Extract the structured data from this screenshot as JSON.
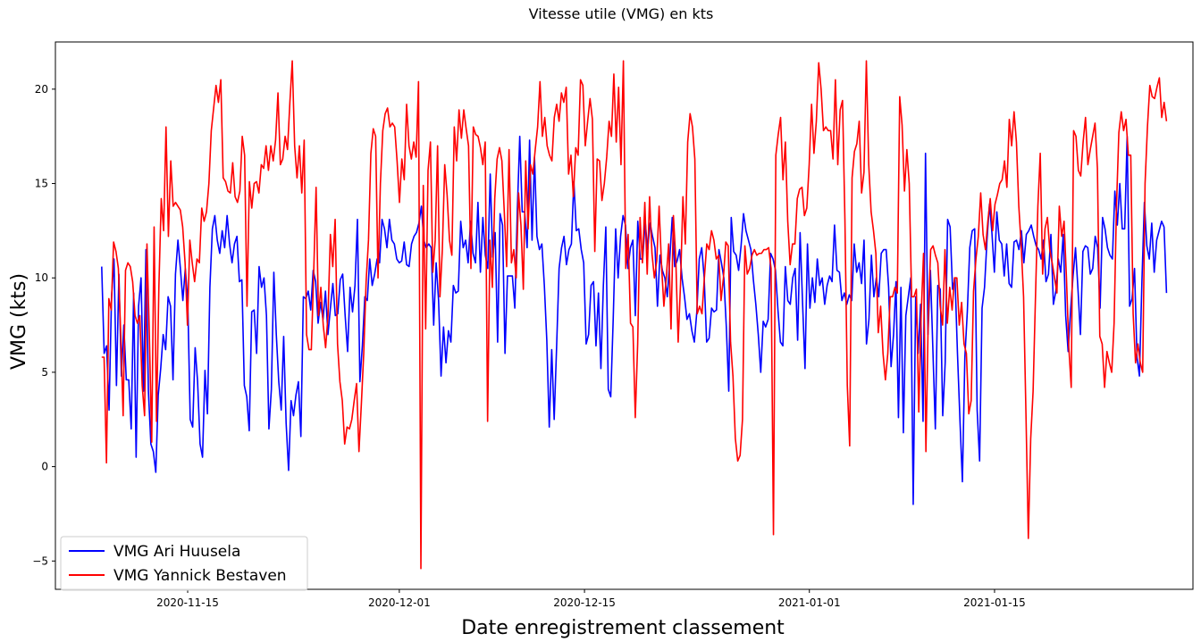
{
  "chart_data": {
    "type": "line",
    "title": "Vitesse utile (VMG) en kts",
    "xlabel": "Date enregistrement classement",
    "ylabel": "VMG (kts)",
    "x_start": "2020-11-08T12:00",
    "x_end": "2021-01-28T00:00",
    "xlim": [
      "2020-11-05T00:00",
      "2021-01-30T00:00"
    ],
    "ylim": [
      -6.5,
      22.5
    ],
    "xticks": [
      "2020-11-15",
      "2020-12-01",
      "2020-12-15",
      "2021-01-01",
      "2021-01-15"
    ],
    "yticks": [
      -5,
      0,
      5,
      10,
      15,
      20
    ],
    "grid": false,
    "legend_position": "lower-left",
    "series": [
      {
        "name": "VMG Ari Huusela",
        "color": "#0000ff",
        "values": [
          10.6,
          6.0,
          6.4,
          3.0,
          9.0,
          11.0,
          4.3,
          10.2,
          4.8,
          7.5,
          4.6,
          4.6,
          2.0,
          9.2,
          0.5,
          8.5,
          10.0,
          4.0,
          11.5,
          4.0,
          1.2,
          0.8,
          -0.3,
          3.8,
          5.2,
          7.0,
          6.2,
          9.0,
          8.5,
          4.6,
          10.2,
          12.0,
          10.5,
          8.8,
          10.5,
          8.8,
          2.5,
          2.1,
          6.3,
          4.5,
          1.2,
          0.5,
          5.1,
          2.8,
          9.5,
          12.6,
          13.3,
          12.0,
          11.3,
          12.5,
          11.6,
          13.3,
          11.8,
          10.8,
          11.8,
          12.2,
          9.8,
          9.9,
          4.3,
          3.7,
          1.9,
          8.2,
          8.3,
          6.0,
          10.6,
          9.5,
          10.0,
          8.0,
          2.0,
          4.1,
          10.3,
          7.0,
          4.5,
          3.0,
          6.9,
          2.3,
          -0.2,
          3.5,
          2.7,
          3.8,
          4.5,
          1.6,
          9.0,
          8.9,
          9.3,
          8.3,
          10.4,
          9.8,
          7.6,
          8.7,
          7.8,
          9.3,
          7.0,
          8.4,
          9.7,
          8.0,
          8.1,
          9.9,
          10.2,
          8.0,
          6.1,
          9.5,
          8.2,
          9.6,
          13.1,
          4.5,
          6.4,
          9.0,
          8.8,
          11.0,
          9.6,
          10.2,
          11.0,
          10.8,
          13.1,
          12.6,
          11.6,
          13.1,
          12.0,
          11.8,
          11.0,
          10.8,
          10.9,
          11.9,
          10.7,
          10.6,
          11.8,
          12.2,
          12.4,
          12.9,
          13.8,
          12.0,
          11.6,
          11.8,
          11.6,
          7.5,
          10.8,
          8.8,
          4.8,
          7.4,
          5.5,
          7.2,
          6.6,
          9.6,
          9.2,
          9.3,
          13.0,
          11.6,
          12.0,
          10.8,
          13.0,
          11.3,
          10.8,
          14.0,
          10.3,
          13.2,
          11.2,
          10.5,
          15.5,
          11.1,
          12.4,
          6.6,
          13.4,
          12.8,
          6.0,
          10.1,
          10.1,
          10.1,
          8.4,
          13.5,
          17.5,
          13.5,
          13.5,
          11.6,
          17.3,
          12.0,
          16.4,
          12.2,
          11.5,
          11.8,
          9.6,
          6.7,
          2.1,
          6.2,
          2.5,
          6.4,
          10.5,
          11.6,
          12.2,
          10.7,
          11.5,
          11.8,
          15.1,
          12.5,
          12.6,
          11.5,
          10.8,
          6.5,
          7.0,
          9.6,
          9.8,
          6.4,
          9.2,
          5.2,
          9.6,
          12.7,
          4.1,
          3.7,
          7.8,
          12.6,
          10.0,
          12.2,
          13.3,
          12.8,
          10.5,
          11.6,
          12.0,
          8.0,
          13.0,
          11.0,
          11.0,
          13.0,
          11.5,
          12.9,
          12.2,
          11.6,
          8.5,
          11.2,
          10.4,
          10.0,
          9.0,
          11.0,
          13.2,
          10.6,
          10.9,
          11.5,
          10.0,
          9.0,
          7.8,
          8.1,
          7.2,
          6.6,
          8.2,
          11.0,
          11.6,
          10.0,
          6.6,
          6.8,
          8.4,
          8.2,
          8.3,
          11.5,
          10.8,
          10.0,
          7.4,
          4.0,
          13.2,
          11.4,
          11.2,
          10.4,
          11.7,
          13.4,
          12.5,
          12.0,
          11.5,
          9.9,
          8.6,
          7.0,
          5.0,
          7.7,
          7.4,
          7.8,
          11.3,
          11.0,
          10.4,
          8.3,
          6.6,
          6.4,
          10.6,
          8.8,
          8.6,
          10.0,
          10.5,
          6.7,
          12.4,
          8.7,
          5.2,
          11.8,
          8.4,
          10.0,
          8.7,
          11.0,
          9.6,
          10.0,
          8.6,
          9.6,
          10.1,
          9.8,
          12.8,
          10.4,
          10.3,
          8.8,
          9.2,
          8.6,
          9.1,
          8.8,
          11.8,
          10.3,
          10.8,
          9.7,
          12.0,
          6.5,
          7.8,
          11.2,
          9.0,
          10.0,
          9.0,
          11.3,
          11.5,
          11.5,
          9.5,
          5.3,
          7.0,
          9.8,
          2.6,
          9.5,
          1.8,
          8.0,
          9.0,
          10.0,
          -2.0,
          9.0,
          6.0,
          8.6,
          2.4,
          16.6,
          7.0,
          10.4,
          6.2,
          2.0,
          9.6,
          9.4,
          2.7,
          5.5,
          13.1,
          12.7,
          9.4,
          10.0,
          6.0,
          2.5,
          -0.8,
          5.8,
          8.2,
          11.6,
          12.5,
          12.6,
          3.0,
          0.3,
          8.4,
          9.5,
          12.0,
          13.9,
          12.4,
          10.3,
          13.5,
          12.0,
          11.8,
          10.1,
          11.8,
          9.7,
          9.5,
          11.9,
          12.0,
          11.5,
          12.5,
          10.8,
          12.3,
          12.5,
          12.8,
          12.2,
          11.7,
          11.5,
          11.0,
          12.0,
          9.8,
          10.2,
          12.3,
          8.6,
          9.3,
          11.0,
          10.3,
          12.3,
          8.0,
          6.1,
          8.3,
          10.1,
          11.6,
          9.4,
          7.0,
          11.4,
          11.7,
          11.6,
          10.2,
          10.5,
          12.2,
          11.6,
          8.4,
          13.2,
          12.6,
          11.6,
          11.2,
          11.0,
          14.6,
          12.8,
          15.0,
          12.6,
          12.6,
          17.5,
          8.5,
          8.9,
          10.5,
          5.8,
          4.8,
          9.8,
          14.0,
          11.7,
          11.0,
          12.9,
          10.3,
          12.0,
          12.5,
          13.0,
          12.7,
          9.2
        ]
      },
      {
        "name": "VMG Yannick Bestaven",
        "color": "#ff0000",
        "values": [
          5.8,
          5.8,
          0.2,
          8.9,
          8.3,
          11.9,
          11.4,
          10.5,
          7.0,
          2.7,
          10.4,
          10.8,
          10.6,
          9.8,
          8.0,
          7.6,
          8.0,
          4.3,
          2.7,
          11.8,
          7.0,
          1.3,
          12.7,
          2.4,
          9.5,
          14.2,
          12.5,
          18.0,
          12.2,
          16.2,
          13.8,
          14.0,
          13.8,
          13.6,
          12.7,
          10.8,
          7.5,
          12.0,
          10.8,
          9.8,
          11.0,
          10.8,
          13.7,
          13.0,
          13.5,
          15.0,
          17.8,
          19.0,
          20.2,
          19.3,
          20.5,
          15.3,
          15.1,
          14.6,
          14.5,
          16.1,
          14.3,
          14.0,
          14.6,
          17.5,
          16.5,
          8.5,
          15.1,
          13.7,
          15.0,
          15.1,
          14.5,
          16.0,
          15.8,
          17.0,
          15.7,
          17.0,
          16.2,
          17.3,
          19.8,
          16.0,
          16.3,
          17.5,
          16.8,
          19.3,
          21.5,
          17.0,
          15.3,
          17.0,
          14.5,
          17.3,
          7.0,
          6.2,
          6.2,
          10.3,
          14.8,
          8.0,
          9.5,
          7.5,
          6.3,
          8.0,
          12.3,
          10.6,
          13.1,
          6.5,
          4.5,
          3.5,
          1.2,
          2.1,
          2.0,
          2.5,
          3.5,
          4.4,
          0.8,
          3.3,
          6.0,
          9.8,
          12.0,
          16.6,
          17.9,
          17.5,
          10.0,
          15.0,
          17.8,
          18.7,
          19.0,
          18.0,
          18.2,
          18.0,
          16.2,
          14.0,
          16.3,
          15.2,
          19.2,
          17.0,
          16.3,
          17.2,
          16.4,
          20.4,
          -5.4,
          14.9,
          7.3,
          15.7,
          17.2,
          10.3,
          12.0,
          17.0,
          9.0,
          11.5,
          16.0,
          14.4,
          12.0,
          11.2,
          18.0,
          16.2,
          18.9,
          17.4,
          18.9,
          17.9,
          17.0,
          10.5,
          18.0,
          17.6,
          17.5,
          16.9,
          16.0,
          17.2,
          2.4,
          12.0,
          9.5,
          14.2,
          16.3,
          16.9,
          16.2,
          13.5,
          10.6,
          16.8,
          10.8,
          11.5,
          10.0,
          14.5,
          12.8,
          9.4,
          16.2,
          12.6,
          16.0,
          15.5,
          16.8,
          18.0,
          20.4,
          17.5,
          18.5,
          17.0,
          16.5,
          16.2,
          18.5,
          19.2,
          18.3,
          19.8,
          19.3,
          20.1,
          15.5,
          16.5,
          14.3,
          16.9,
          16.5,
          20.5,
          20.2,
          17.0,
          18.3,
          19.5,
          18.4,
          11.4,
          16.3,
          16.2,
          14.1,
          15.0,
          16.4,
          18.3,
          17.5,
          20.8,
          17.2,
          20.1,
          16.0,
          21.5,
          10.5,
          12.3,
          7.6,
          7.4,
          2.6,
          6.5,
          13.2,
          10.8,
          14.0,
          10.2,
          14.3,
          11.3,
          10.0,
          10.9,
          13.8,
          10.7,
          8.5,
          10.0,
          11.8,
          7.3,
          13.3,
          11.0,
          6.6,
          9.7,
          14.3,
          11.8,
          17.2,
          18.7,
          18.0,
          16.3,
          8.1,
          8.5,
          8.1,
          10.0,
          11.8,
          11.5,
          12.5,
          12.0,
          11.0,
          11.2,
          8.8,
          10.0,
          11.9,
          11.7,
          6.6,
          4.8,
          1.5,
          0.3,
          0.6,
          2.5,
          11.7,
          10.2,
          10.5,
          11.2,
          11.5,
          11.2,
          11.3,
          11.3,
          11.5,
          11.5,
          11.6,
          10.5,
          -3.6,
          16.5,
          17.6,
          18.5,
          15.2,
          17.2,
          13.0,
          10.7,
          11.8,
          11.8,
          14.2,
          14.7,
          14.8,
          13.3,
          13.7,
          16.0,
          19.2,
          16.6,
          18.3,
          21.4,
          20.0,
          17.8,
          18.0,
          17.8,
          17.8,
          16.3,
          20.5,
          16.0,
          18.9,
          19.4,
          13.1,
          4.3,
          1.1,
          15.3,
          16.7,
          17.1,
          18.3,
          14.5,
          15.6,
          21.5,
          16.0,
          13.5,
          12.5,
          11.3,
          7.1,
          8.5,
          6.0,
          4.6,
          6.0,
          9.0,
          9.0,
          9.5,
          9.2,
          19.6,
          18.1,
          14.6,
          16.8,
          15.0,
          9.0,
          9.0,
          9.4,
          2.9,
          8.0,
          11.3,
          0.8,
          8.0,
          11.5,
          11.7,
          11.2,
          10.8,
          8.5,
          7.5,
          11.5,
          7.6,
          9.5,
          8.3,
          10.0,
          10.0,
          7.5,
          8.7,
          6.5,
          6.0,
          2.8,
          3.5,
          9.3,
          11.0,
          12.2,
          14.5,
          12.3,
          11.5,
          13.0,
          14.2,
          12.5,
          13.9,
          14.4,
          15.0,
          15.2,
          16.2,
          14.8,
          18.4,
          17.0,
          18.8,
          17.2,
          13.8,
          11.7,
          9.0,
          2.8,
          -3.8,
          1.5,
          4.0,
          9.0,
          13.8,
          16.6,
          10.2,
          12.6,
          13.2,
          11.5,
          10.8,
          10.0,
          9.2,
          13.8,
          12.2,
          13.0,
          10.0,
          6.3,
          4.2,
          17.8,
          17.5,
          15.7,
          15.4,
          17.2,
          18.5,
          16.0,
          16.8,
          17.5,
          18.2,
          15.8,
          6.9,
          6.5,
          4.2,
          6.1,
          5.5,
          5.0,
          7.6,
          13.8,
          17.7,
          18.8,
          17.8,
          18.4,
          16.5,
          16.5,
          8.1,
          5.5,
          6.5,
          5.5,
          5.0,
          15.0,
          18.0,
          20.2,
          19.6,
          19.5,
          20.1,
          20.6,
          18.5,
          19.3,
          18.3
        ]
      }
    ]
  }
}
